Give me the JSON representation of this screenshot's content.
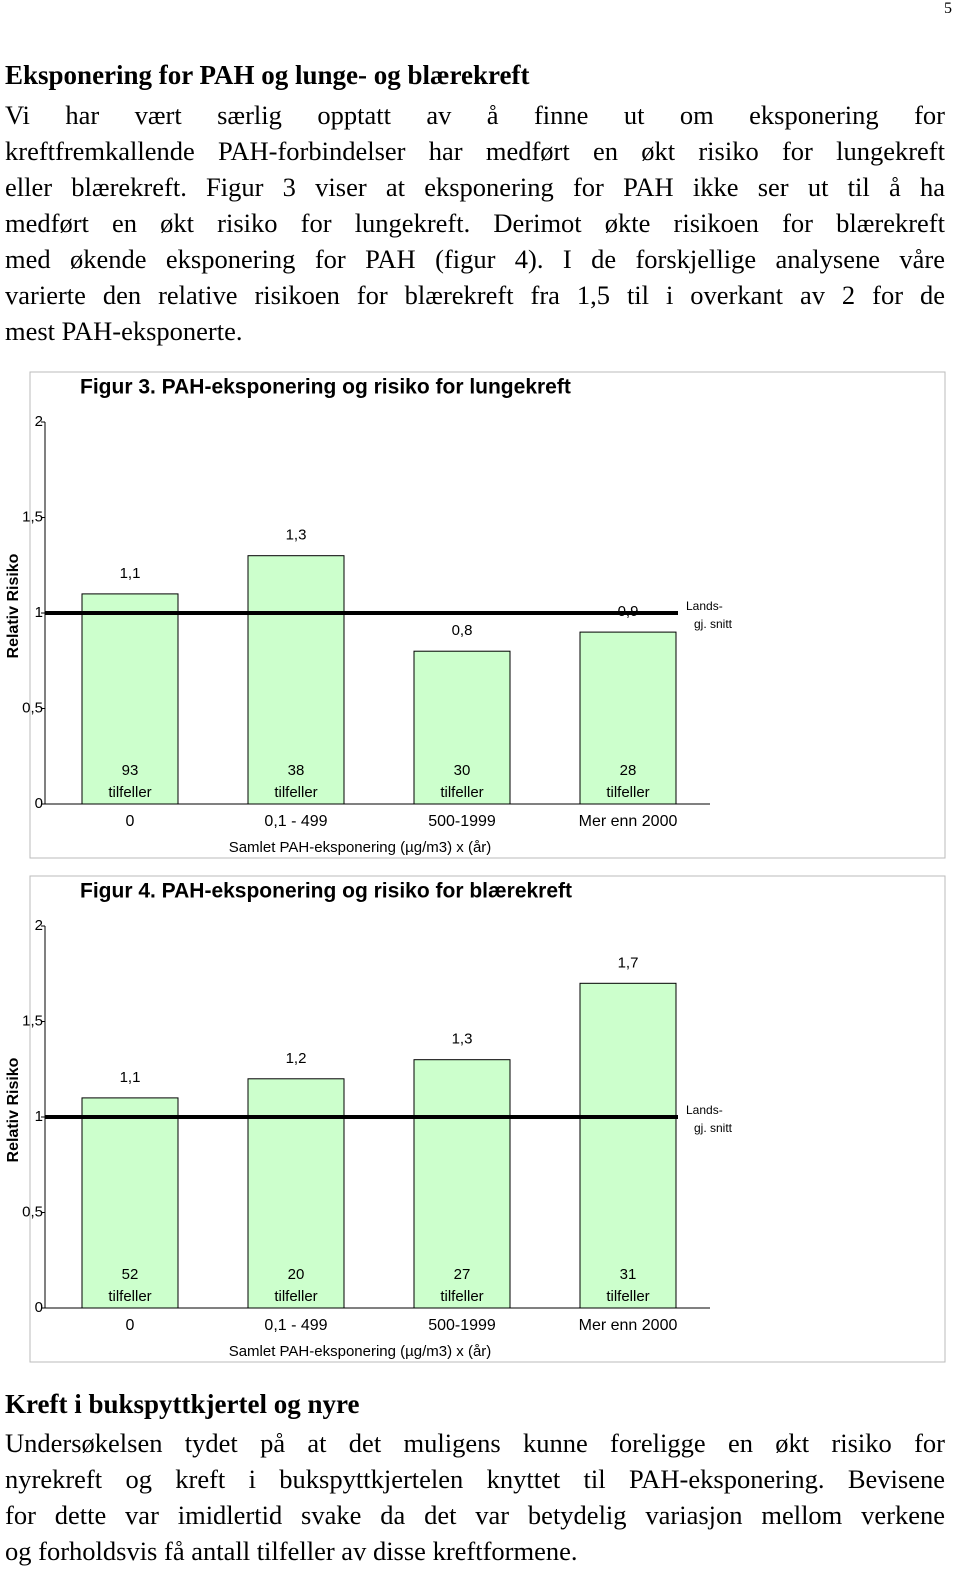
{
  "page_number": "5",
  "section1": {
    "heading": "Eksponering for PAH og lunge- og blærekreft",
    "lines": [
      "Vi har vært særlig opptatt av å finne ut om eksponering for",
      "kreftfremkallende PAH-forbindelser har medført en økt risiko for lungekreft",
      "eller blærekreft. Figur 3 viser at eksponering for PAH ikke ser ut til å ha",
      "medført en økt risiko for lungekreft. Derimot økte risikoen for blærekreft",
      "med økende eksponering for PAH (figur 4). I de forskjellige analysene våre",
      "varierte den relative risikoen for blærekreft fra 1,5 til i overkant av 2 for de",
      "mest PAH-eksponerte."
    ]
  },
  "chart_data": [
    {
      "type": "bar",
      "title": "Figur 3. PAH-eksponering og risiko for lungekreft",
      "x_label": "Samlet PAH-eksponering (µg/m3) x (år)",
      "y_label": "Relativ Risiko",
      "categories": [
        "0",
        "0,1 - 499",
        "500-1999",
        "Mer enn 2000"
      ],
      "values": [
        1.1,
        1.3,
        0.8,
        0.9
      ],
      "value_labels": [
        "1,1",
        "1,3",
        "0,8",
        "0,9"
      ],
      "cases": [
        93,
        38,
        30,
        28
      ],
      "cases_label": "tilfeller",
      "reference": {
        "value": 1,
        "label": [
          "Lands-",
          "gj. snitt"
        ]
      },
      "color": "#ccffcc",
      "ylim": [
        0,
        2
      ],
      "yticks": [
        0,
        {
          "value": 0.5,
          "label": "0,5"
        },
        1,
        {
          "value": 1.5,
          "label": "1,5"
        },
        2
      ]
    },
    {
      "type": "bar",
      "title": "Figur 4. PAH-eksponering og risiko for blærekreft",
      "x_label": "Samlet PAH-eksponering (µg/m3) x (år)",
      "y_label": "Relativ Risiko",
      "categories": [
        "0",
        "0,1 - 499",
        "500-1999",
        "Mer enn 2000"
      ],
      "values": [
        1.1,
        1.2,
        1.3,
        1.7
      ],
      "value_labels": [
        "1,1",
        "1,2",
        "1,3",
        "1,7"
      ],
      "cases": [
        52,
        20,
        27,
        31
      ],
      "cases_label": "tilfeller",
      "reference": {
        "value": 1,
        "label": [
          "Lands-",
          "gj. snitt"
        ]
      },
      "color": "#ccffcc",
      "ylim": [
        0,
        2
      ],
      "yticks": [
        0,
        {
          "value": 0.5,
          "label": "0,5"
        },
        1,
        {
          "value": 1.5,
          "label": "1,5"
        },
        2
      ]
    }
  ],
  "section2": {
    "heading": "Kreft i bukspyttkjertel og nyre",
    "lines": [
      "Undersøkelsen tydet på at det muligens kunne foreligge en økt risiko for",
      "nyrekreft og kreft i bukspyttkjertelen knyttet til PAH-eksponering. Bevisene",
      "for dette var imidlertid svake da det var betydelig variasjon mellom verkene",
      "og forholdsvis få antall tilfeller av disse kreftformene."
    ]
  }
}
